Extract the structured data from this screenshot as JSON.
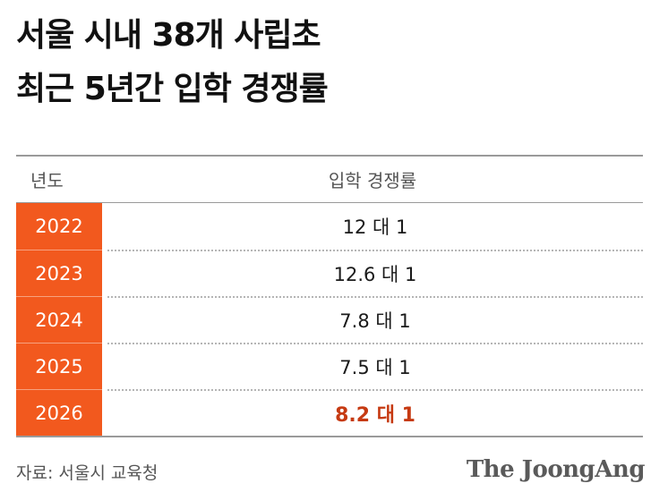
{
  "title": {
    "line1": "서울 시내 38개 사립초",
    "line2": "최근 5년간 입학 경쟁률"
  },
  "table": {
    "header_year": "년도",
    "header_rate": "입학 경쟁률",
    "rows": [
      {
        "year": "2022",
        "rate": "12 대 1"
      },
      {
        "year": "2023",
        "rate": "12.6 대 1"
      },
      {
        "year": "2024",
        "rate": "7.8 대 1"
      },
      {
        "year": "2025",
        "rate": "7.5 대 1"
      },
      {
        "year": "2026",
        "rate": "8.2 대 1"
      }
    ]
  },
  "source": "자료: 서울시 교육청",
  "logo": "The JoongAng",
  "colors": {
    "year_cell_bg": "#f2591e",
    "highlight_text": "#c63a12"
  }
}
